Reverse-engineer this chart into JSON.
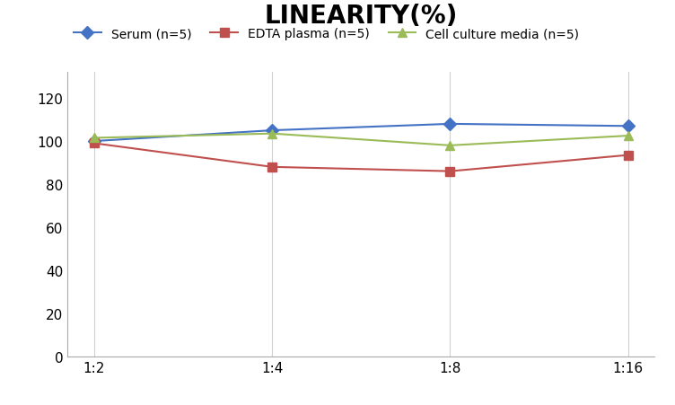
{
  "title": "LINEARITY(%)",
  "title_fontsize": 20,
  "title_fontweight": "bold",
  "x_labels": [
    "1:2",
    "1:4",
    "1:8",
    "1:16"
  ],
  "x_positions": [
    0,
    1,
    2,
    3
  ],
  "series": [
    {
      "label": "Serum (n=5)",
      "values": [
        100.0,
        105.0,
        108.0,
        107.0
      ],
      "color": "#4472C4",
      "marker": "D",
      "linewidth": 1.5,
      "markersize": 7,
      "zorder": 3
    },
    {
      "label": "EDTA plasma (n=5)",
      "values": [
        99.0,
        88.0,
        86.0,
        93.5
      ],
      "color": "#C0504D",
      "marker": "s",
      "linewidth": 1.5,
      "markersize": 7,
      "zorder": 3
    },
    {
      "label": "Cell culture media (n=5)",
      "values": [
        101.5,
        103.5,
        98.0,
        102.5
      ],
      "color": "#9BBB59",
      "marker": "^",
      "linewidth": 1.5,
      "markersize": 7,
      "zorder": 3
    }
  ],
  "ylim": [
    0,
    132
  ],
  "yticks": [
    0,
    20,
    40,
    60,
    80,
    100,
    120
  ],
  "grid_color": "#D0D0D0",
  "grid_linewidth": 0.8,
  "background_color": "#FFFFFF",
  "legend_fontsize": 10,
  "tick_fontsize": 11,
  "spine_color": "#AAAAAA"
}
